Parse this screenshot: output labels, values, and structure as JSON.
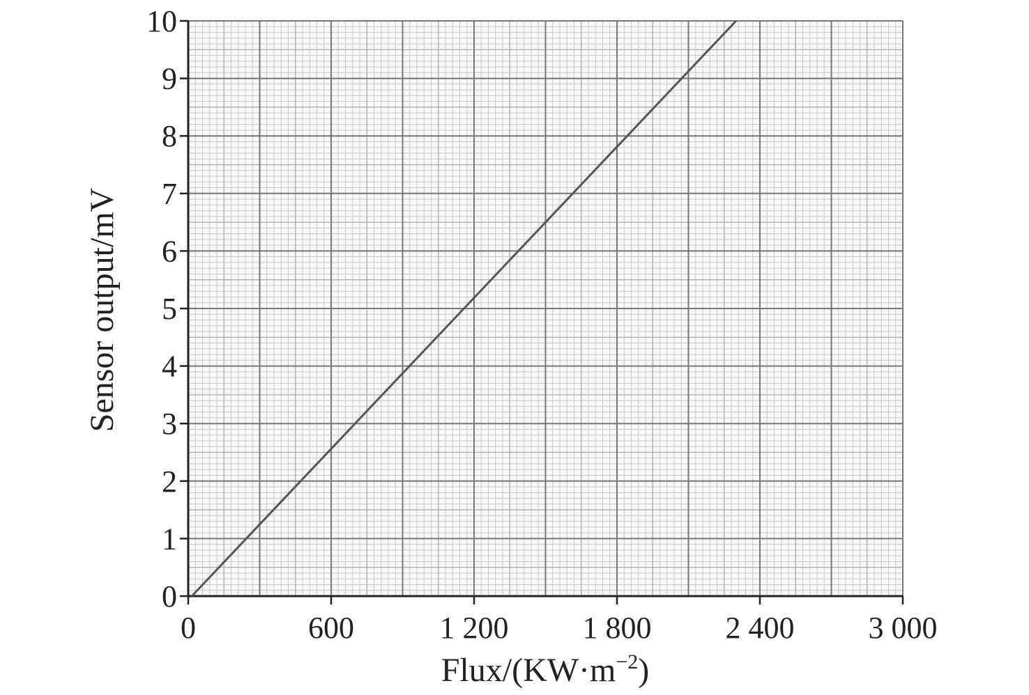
{
  "chart_data": {
    "type": "line",
    "xlabel": "Flux/(KW·m",
    "xlabel_sup": "−2",
    "xlabel_close": ")",
    "ylabel": "Sensor output/mV",
    "xlim": [
      0,
      3000
    ],
    "ylim": [
      0,
      10
    ],
    "xticks": [
      0,
      600,
      1200,
      1800,
      2400,
      3000
    ],
    "xtick_labels": [
      "0",
      "600",
      "1 200",
      "1 800",
      "2 400",
      "3 000"
    ],
    "yticks": [
      0,
      1,
      2,
      3,
      4,
      5,
      6,
      7,
      8,
      9,
      10
    ],
    "ytick_labels": [
      "0",
      "1",
      "2",
      "3",
      "4",
      "5",
      "6",
      "7",
      "8",
      "9",
      "10"
    ],
    "grid": true,
    "series": [
      {
        "x": [
          15,
          2300
        ],
        "y": [
          0,
          10
        ]
      }
    ],
    "colors": {
      "line": "#555555",
      "major_grid": "#777777",
      "minor_grid": "#c8c8c8",
      "axis": "#222222"
    }
  }
}
